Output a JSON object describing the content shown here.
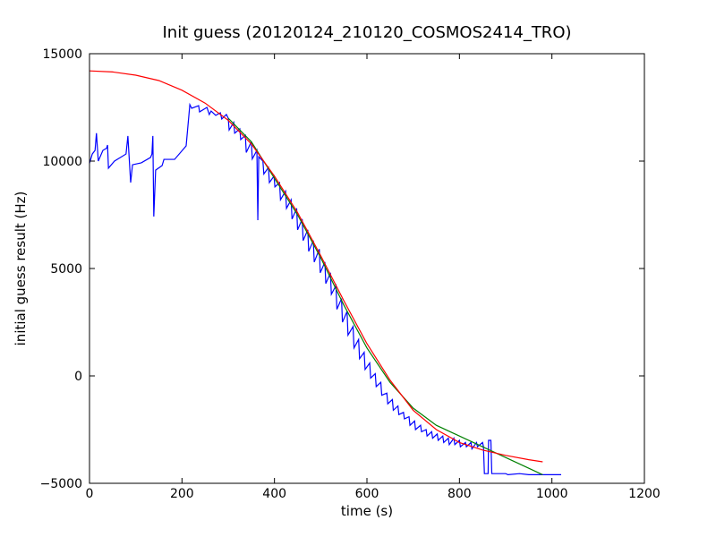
{
  "chart_data": {
    "type": "line",
    "title": "Init guess (20120124_210120_COSMOS2414_TRO)",
    "xlabel": "time (s)",
    "ylabel": "initial guess result (Hz)",
    "xlim": [
      0,
      1200
    ],
    "xticks": [
      0,
      200,
      400,
      600,
      800,
      1000,
      1200
    ],
    "ylim": [
      -5000,
      15000
    ],
    "yticks": [
      {
        "value": -5000,
        "label": "−5000"
      },
      0,
      5000,
      10000,
      15000
    ],
    "grid": false,
    "series": [
      {
        "color": "#0000ff",
        "x": [
          0,
          6,
          12,
          15,
          19,
          29,
          37,
          39,
          41,
          54,
          79,
          83,
          89,
          93,
          112,
          132,
          135,
          137,
          139,
          143,
          157,
          161,
          184,
          209,
          217,
          221,
          236,
          238,
          254,
          259,
          263,
          273,
          283,
          286,
          296,
          300,
          302,
          312,
          314,
          325,
          327,
          337,
          339,
          350,
          352,
          362,
          364,
          366,
          375,
          377,
          387,
          389,
          399,
          401,
          411,
          413,
          424,
          426,
          436,
          438,
          448,
          450,
          460,
          462,
          472,
          474,
          484,
          486,
          497,
          499,
          509,
          511,
          521,
          523,
          533,
          535,
          545,
          547,
          557,
          559,
          570,
          572,
          582,
          584,
          594,
          596,
          606,
          608,
          618,
          620,
          630,
          632,
          643,
          645,
          655,
          657,
          667,
          669,
          679,
          681,
          691,
          693,
          703,
          705,
          716,
          718,
          728,
          730,
          740,
          742,
          752,
          754,
          764,
          766,
          776,
          778,
          788,
          790,
          800,
          802,
          813,
          815,
          825,
          827,
          837,
          839,
          850,
          852,
          854,
          862,
          863,
          868,
          870,
          900,
          905,
          930,
          950,
          1020
        ],
        "values": [
          9900,
          10330,
          10500,
          11300,
          10000,
          10500,
          10600,
          10750,
          9670,
          10000,
          10330,
          11170,
          9000,
          9830,
          9920,
          10170,
          10330,
          11170,
          7420,
          9580,
          9790,
          10080,
          10080,
          10710,
          12630,
          12460,
          12580,
          12290,
          12500,
          12170,
          12330,
          12130,
          12250,
          11960,
          12170,
          12000,
          11450,
          11800,
          11300,
          11500,
          11000,
          11200,
          10400,
          10900,
          10100,
          10500,
          7250,
          10200,
          10000,
          9400,
          9700,
          9000,
          9300,
          8800,
          9000,
          8200,
          8600,
          7800,
          8200,
          7300,
          7800,
          6800,
          7300,
          6300,
          6800,
          5800,
          6300,
          5300,
          5900,
          4800,
          5300,
          4300,
          4800,
          3800,
          4200,
          3100,
          3600,
          2500,
          3000,
          1900,
          2300,
          1300,
          1700,
          800,
          1100,
          300,
          600,
          -100,
          100,
          -500,
          -300,
          -900,
          -800,
          -1300,
          -1100,
          -1600,
          -1400,
          -1800,
          -1700,
          -2000,
          -1900,
          -2300,
          -2100,
          -2500,
          -2300,
          -2600,
          -2500,
          -2800,
          -2600,
          -2900,
          -2700,
          -3000,
          -2800,
          -3100,
          -2900,
          -3200,
          -2900,
          -3200,
          -3000,
          -3300,
          -3100,
          -3300,
          -3100,
          -3400,
          -3100,
          -3300,
          -3100,
          -3300,
          -4550,
          -4550,
          -3000,
          -3000,
          -4550,
          -4550,
          -4600,
          -4550,
          -4600,
          -4600
        ]
      },
      {
        "color": "#008000",
        "x": [
          300,
          350,
          400,
          450,
          500,
          550,
          600,
          650,
          700,
          750,
          800,
          850,
          900,
          950,
          980
        ],
        "values": [
          12000,
          10900,
          9200,
          7500,
          5500,
          3300,
          1300,
          -300,
          -1500,
          -2300,
          -2800,
          -3300,
          -3800,
          -4300,
          -4600
        ]
      },
      {
        "color": "#ff0000",
        "x": [
          0,
          50,
          100,
          150,
          200,
          250,
          300,
          350,
          400,
          450,
          500,
          550,
          600,
          650,
          700,
          750,
          800,
          850,
          900,
          950,
          980
        ],
        "values": [
          14200,
          14150,
          14000,
          13750,
          13300,
          12700,
          11900,
          10800,
          9300,
          7600,
          5600,
          3500,
          1500,
          -200,
          -1600,
          -2500,
          -3100,
          -3450,
          -3700,
          -3900,
          -4000
        ]
      }
    ]
  }
}
